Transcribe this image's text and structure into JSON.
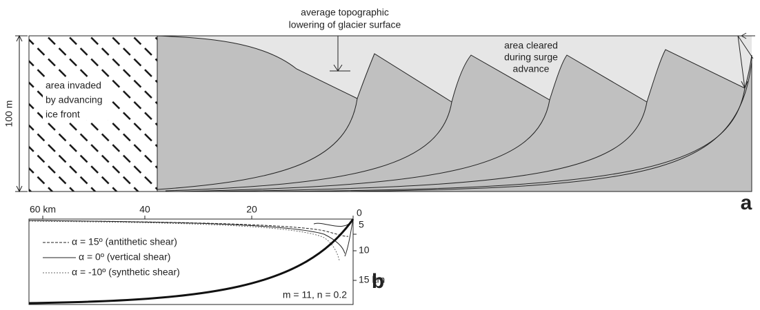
{
  "panel_a": {
    "label": "a",
    "height_label": "100 m",
    "lowering_label": [
      "average topographic",
      "lowering of glacier surface"
    ],
    "cleared_label": [
      "area cleared",
      "during surge",
      "advance"
    ],
    "invaded_label": [
      "area invaded",
      "by advancing",
      "ice front"
    ]
  },
  "panel_b": {
    "label": "b",
    "x_labels": [
      "60 km",
      "40",
      "20",
      "0"
    ],
    "depth_labels": [
      "5",
      "10",
      "15 km"
    ],
    "legend": [
      "α = 15º (antithetic shear)",
      "α = 0º (vertical shear)",
      "α = -10º (synthetic shear)"
    ],
    "params": "m = 11, n = 0.2"
  }
}
